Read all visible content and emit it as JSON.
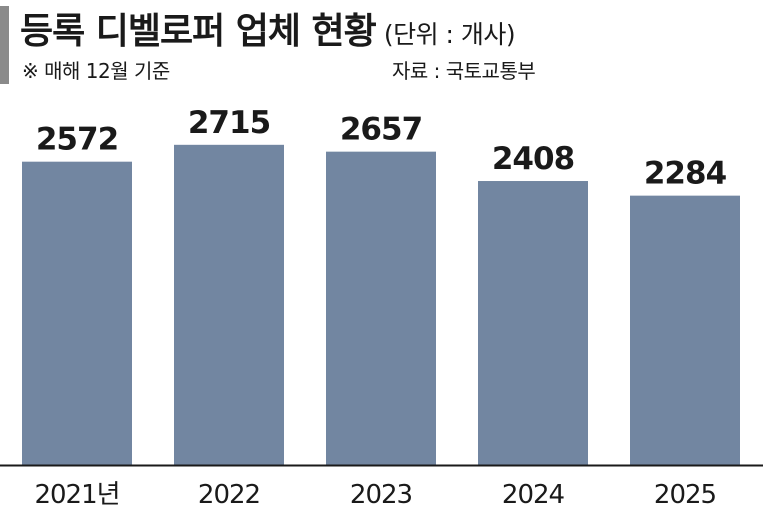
{
  "header": {
    "title": "등록 디벨로퍼 업체 현황",
    "unit": "(단위 : 개사)",
    "note": "※ 매해 12월 기준",
    "source": "자료 : 국토교통부"
  },
  "colors": {
    "bar": "#7286a1",
    "baseline": "#1a1a1a",
    "text": "#1a1a1a",
    "accent": "#8a8a8a"
  },
  "chart_data": {
    "type": "bar",
    "categories": [
      "2021년",
      "2022",
      "2023",
      "2024",
      "2025"
    ],
    "values": [
      2572,
      2715,
      2657,
      2408,
      2284
    ],
    "title": "등록 디벨로퍼 업체 현황",
    "unit": "(단위 : 개사)",
    "xlabel": "",
    "ylabel": "",
    "ylim": [
      0,
      2900
    ],
    "grid": false,
    "legend": "none",
    "data_labels": true
  }
}
